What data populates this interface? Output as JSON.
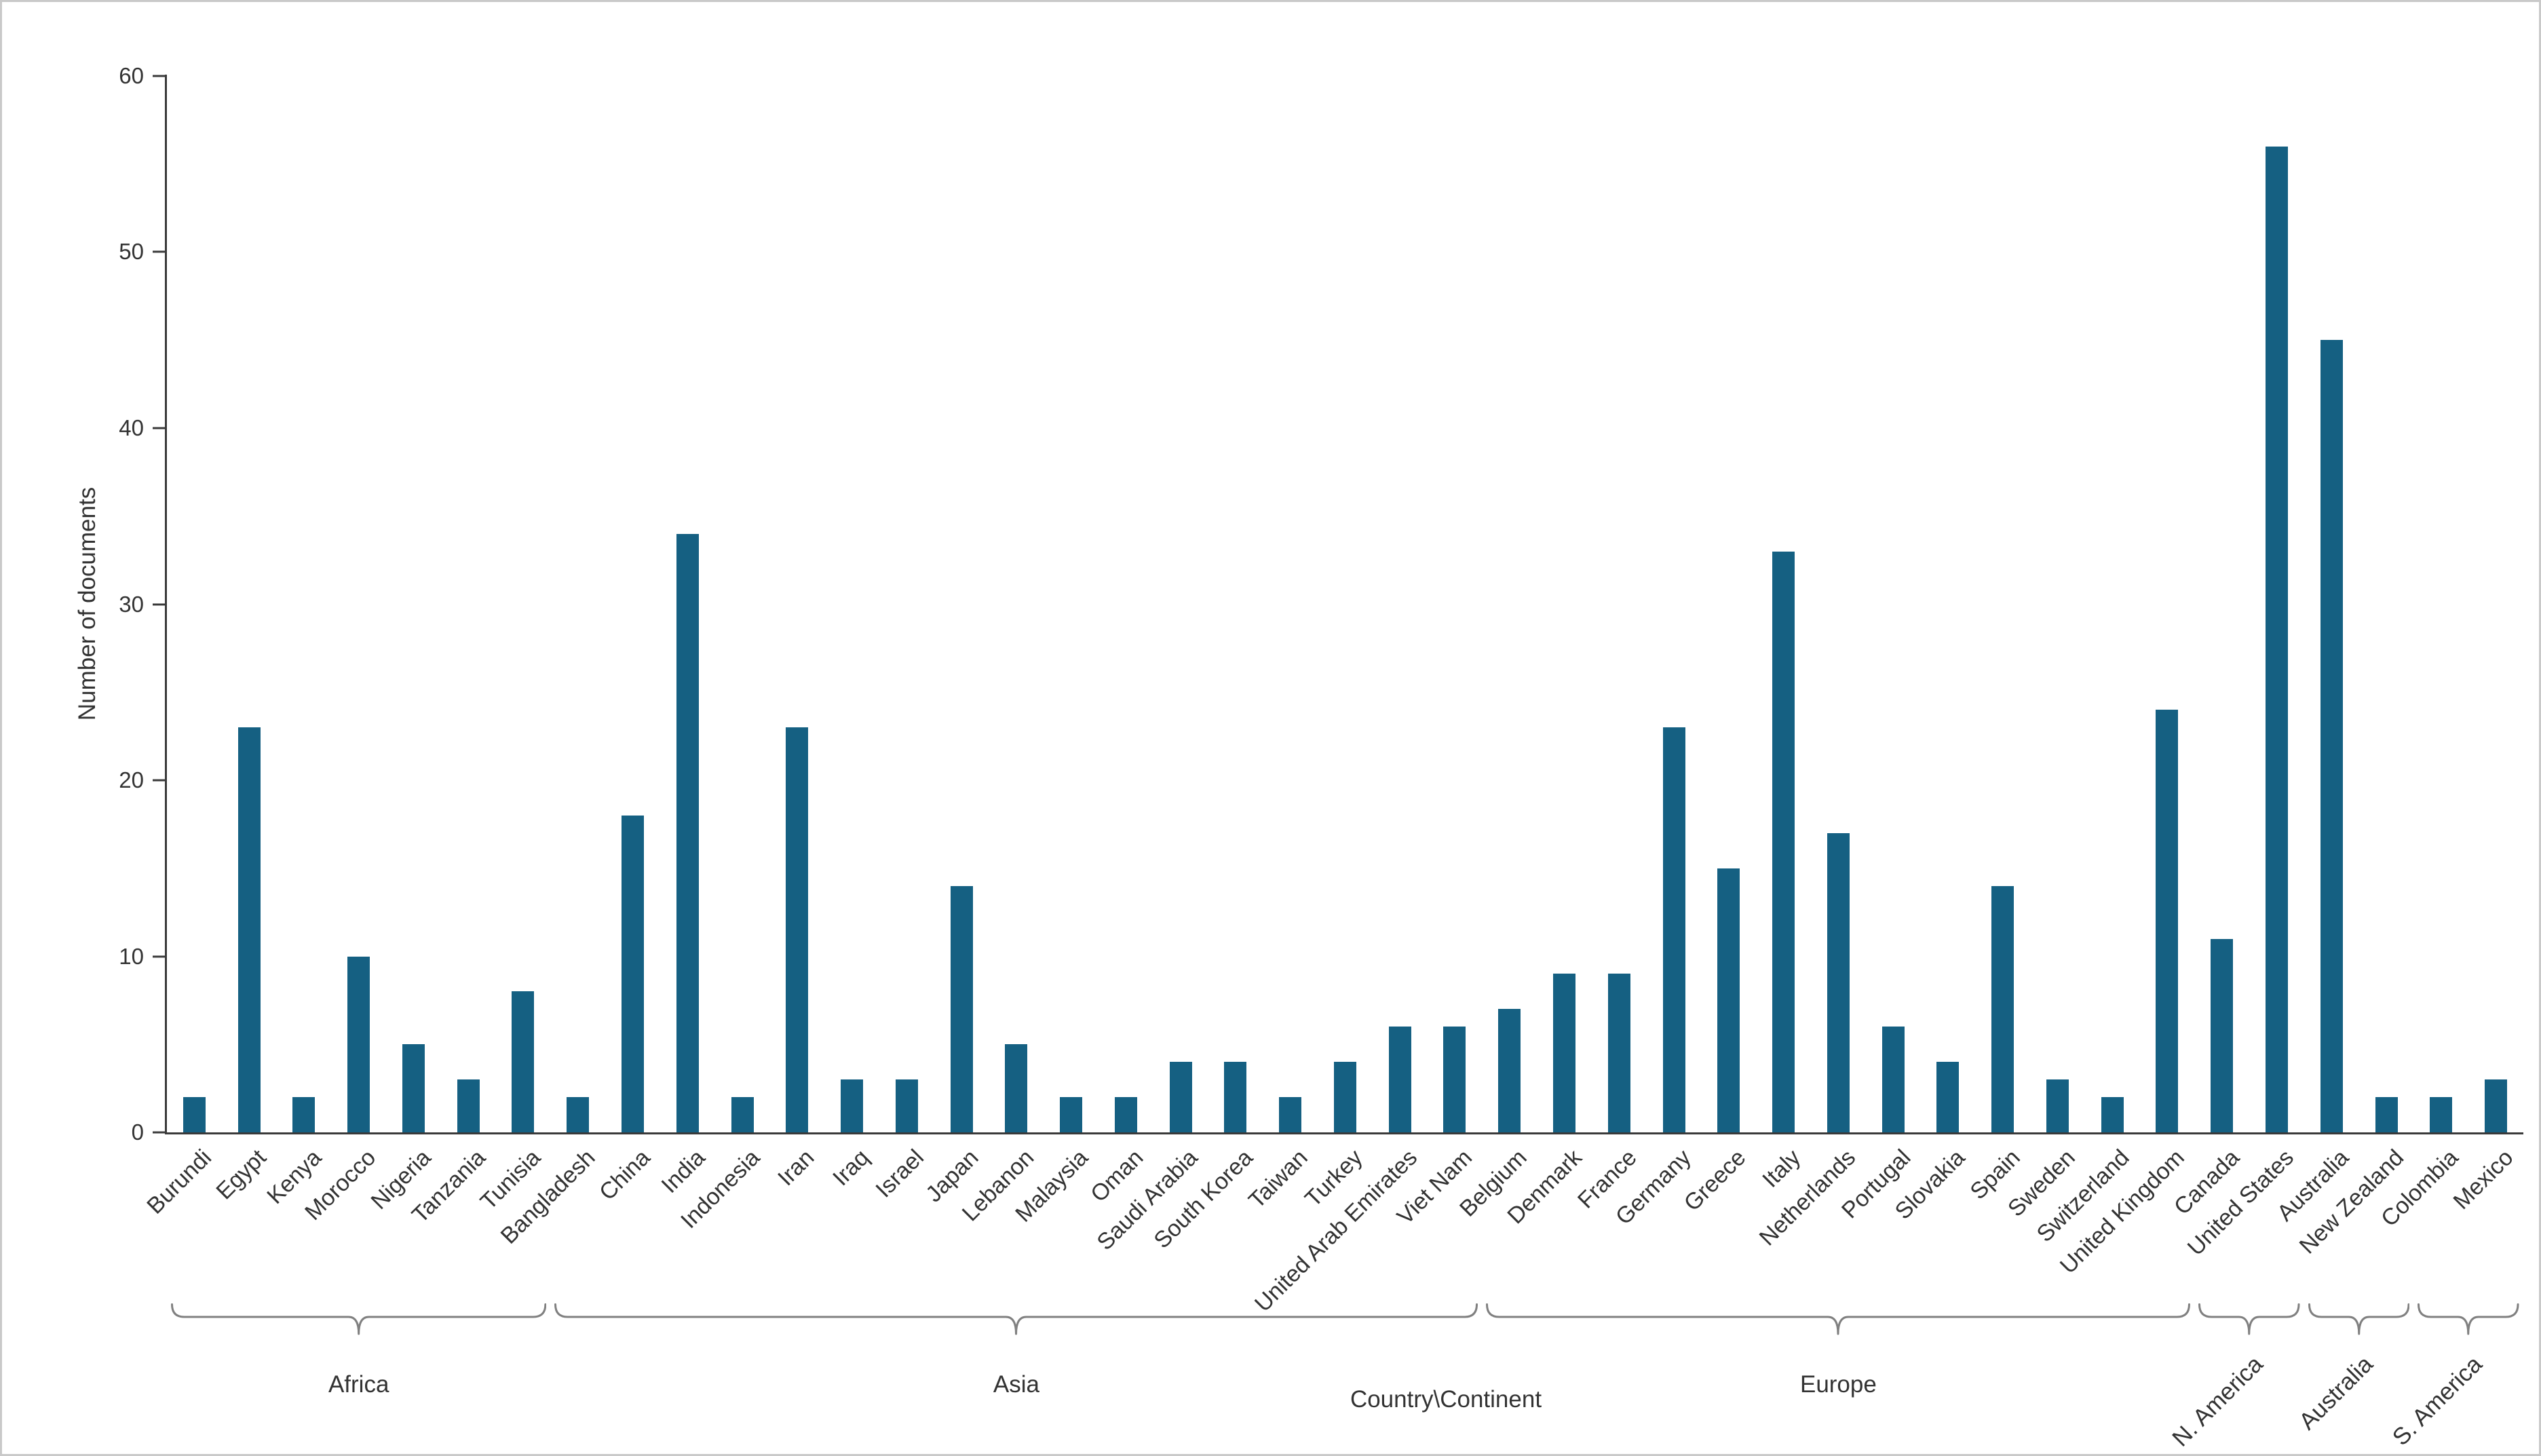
{
  "figure": {
    "background": "#ffffff",
    "border_color": "#c9c9c9"
  },
  "chart_data": {
    "type": "bar",
    "title": "",
    "xlabel": "Country\\Continent",
    "ylabel": "Number of documents",
    "ylim": [
      0,
      60
    ],
    "yticks": [
      0,
      10,
      20,
      30,
      40,
      50,
      60
    ],
    "grid": false,
    "legend": "none",
    "bar_color": "#156082",
    "axis_color": "#3a3a3a",
    "text_color": "#333333",
    "brace_color": "#808080",
    "categories": [
      "Burundi",
      "Egypt",
      "Kenya",
      "Morocco",
      "Nigeria",
      "Tanzania",
      "Tunisia",
      "Bangladesh",
      "China",
      "India",
      "Indonesia",
      "Iran",
      "Iraq",
      "Israel",
      "Japan",
      "Lebanon",
      "Malaysia",
      "Oman",
      "Saudi Arabia",
      "South Korea",
      "Taiwan",
      "Turkey",
      "United Arab Emirates",
      "Viet Nam",
      "Belgium",
      "Denmark",
      "France",
      "Germany",
      "Greece",
      "Italy",
      "Netherlands",
      "Portugal",
      "Slovakia",
      "Spain",
      "Sweden",
      "Switzerland",
      "United Kingdom",
      "Canada",
      "United States",
      "Australia",
      "New Zealand",
      "Colombia",
      "Mexico"
    ],
    "values": [
      2,
      23,
      2,
      10,
      5,
      3,
      8,
      2,
      18,
      34,
      2,
      23,
      3,
      3,
      14,
      5,
      2,
      2,
      4,
      4,
      2,
      4,
      6,
      6,
      7,
      9,
      9,
      23,
      15,
      33,
      17,
      6,
      4,
      14,
      3,
      2,
      24,
      11,
      56,
      45,
      2,
      2,
      3
    ],
    "groups": [
      {
        "label": "Africa",
        "start": 0,
        "count": 7,
        "rotated": false
      },
      {
        "label": "Asia",
        "start": 7,
        "count": 17,
        "rotated": false
      },
      {
        "label": "Europe",
        "start": 24,
        "count": 13,
        "rotated": false
      },
      {
        "label": "N. America",
        "start": 37,
        "count": 2,
        "rotated": true
      },
      {
        "label": "Australia",
        "start": 39,
        "count": 2,
        "rotated": true
      },
      {
        "label": "S. America",
        "start": 41,
        "count": 2,
        "rotated": true
      }
    ]
  }
}
